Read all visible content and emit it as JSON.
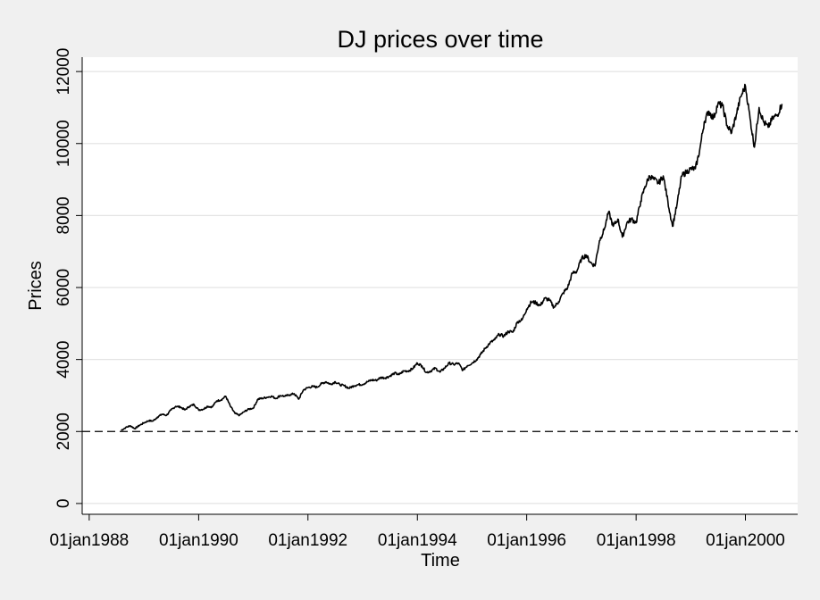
{
  "chart_data": {
    "type": "line",
    "title": "DJ prices over time",
    "xlabel": "Time",
    "ylabel": "Prices",
    "xlim": [
      "1987-11-15",
      "2000-12-15"
    ],
    "ylim": [
      -300,
      12400
    ],
    "x_ticks": [
      "01jan1988",
      "01jan1990",
      "01jan1992",
      "01jan1994",
      "01jan1996",
      "01jan1998",
      "01jan2000"
    ],
    "y_ticks": [
      0,
      2000,
      4000,
      6000,
      8000,
      10000,
      12000
    ],
    "grid": true,
    "reference_line": {
      "y": 2000,
      "style": "dashed"
    },
    "series": [
      {
        "points": [
          [
            "1988-08-01",
            2030
          ],
          [
            "1988-09-01",
            2110
          ],
          [
            "1988-10-01",
            2160
          ],
          [
            "1988-11-01",
            2080
          ],
          [
            "1988-12-01",
            2170
          ],
          [
            "1989-01-01",
            2240
          ],
          [
            "1989-02-01",
            2300
          ],
          [
            "1989-03-01",
            2290
          ],
          [
            "1989-04-01",
            2400
          ],
          [
            "1989-05-01",
            2480
          ],
          [
            "1989-06-01",
            2450
          ],
          [
            "1989-07-01",
            2600
          ],
          [
            "1989-08-01",
            2700
          ],
          [
            "1989-09-01",
            2680
          ],
          [
            "1989-10-01",
            2600
          ],
          [
            "1989-11-01",
            2700
          ],
          [
            "1989-12-01",
            2750
          ],
          [
            "1990-01-01",
            2600
          ],
          [
            "1990-02-01",
            2620
          ],
          [
            "1990-03-01",
            2700
          ],
          [
            "1990-04-01",
            2680
          ],
          [
            "1990-05-01",
            2850
          ],
          [
            "1990-06-01",
            2880
          ],
          [
            "1990-07-01",
            2980
          ],
          [
            "1990-08-01",
            2700
          ],
          [
            "1990-09-01",
            2500
          ],
          [
            "1990-10-01",
            2450
          ],
          [
            "1990-11-01",
            2550
          ],
          [
            "1990-12-01",
            2620
          ],
          [
            "1991-01-01",
            2650
          ],
          [
            "1991-02-01",
            2900
          ],
          [
            "1991-03-01",
            2920
          ],
          [
            "1991-04-01",
            2950
          ],
          [
            "1991-05-01",
            2980
          ],
          [
            "1991-06-01",
            2920
          ],
          [
            "1991-07-01",
            3000
          ],
          [
            "1991-08-01",
            2980
          ],
          [
            "1991-09-01",
            3020
          ],
          [
            "1991-10-01",
            3050
          ],
          [
            "1991-11-01",
            2900
          ],
          [
            "1991-12-01",
            3150
          ],
          [
            "1992-01-01",
            3220
          ],
          [
            "1992-02-01",
            3250
          ],
          [
            "1992-03-01",
            3230
          ],
          [
            "1992-04-01",
            3330
          ],
          [
            "1992-05-01",
            3380
          ],
          [
            "1992-06-01",
            3310
          ],
          [
            "1992-07-01",
            3380
          ],
          [
            "1992-08-01",
            3300
          ],
          [
            "1992-09-01",
            3270
          ],
          [
            "1992-10-01",
            3200
          ],
          [
            "1992-11-01",
            3270
          ],
          [
            "1992-12-01",
            3300
          ],
          [
            "1993-01-01",
            3310
          ],
          [
            "1993-02-01",
            3380
          ],
          [
            "1993-03-01",
            3430
          ],
          [
            "1993-04-01",
            3420
          ],
          [
            "1993-05-01",
            3500
          ],
          [
            "1993-06-01",
            3490
          ],
          [
            "1993-07-01",
            3540
          ],
          [
            "1993-08-01",
            3620
          ],
          [
            "1993-09-01",
            3580
          ],
          [
            "1993-10-01",
            3680
          ],
          [
            "1993-11-01",
            3680
          ],
          [
            "1993-12-01",
            3750
          ],
          [
            "1994-01-01",
            3900
          ],
          [
            "1994-02-01",
            3820
          ],
          [
            "1994-03-01",
            3640
          ],
          [
            "1994-04-01",
            3680
          ],
          [
            "1994-05-01",
            3760
          ],
          [
            "1994-06-01",
            3650
          ],
          [
            "1994-07-01",
            3760
          ],
          [
            "1994-08-01",
            3900
          ],
          [
            "1994-09-01",
            3860
          ],
          [
            "1994-10-01",
            3900
          ],
          [
            "1994-11-01",
            3700
          ],
          [
            "1994-12-01",
            3830
          ],
          [
            "1995-01-01",
            3900
          ],
          [
            "1995-02-01",
            4000
          ],
          [
            "1995-03-01",
            4150
          ],
          [
            "1995-04-01",
            4320
          ],
          [
            "1995-05-01",
            4460
          ],
          [
            "1995-06-01",
            4550
          ],
          [
            "1995-07-01",
            4700
          ],
          [
            "1995-08-01",
            4650
          ],
          [
            "1995-09-01",
            4780
          ],
          [
            "1995-10-01",
            4760
          ],
          [
            "1995-11-01",
            5050
          ],
          [
            "1995-12-01",
            5100
          ],
          [
            "1996-01-01",
            5400
          ],
          [
            "1996-02-01",
            5600
          ],
          [
            "1996-03-01",
            5580
          ],
          [
            "1996-04-01",
            5500
          ],
          [
            "1996-05-01",
            5700
          ],
          [
            "1996-06-01",
            5650
          ],
          [
            "1996-07-01",
            5450
          ],
          [
            "1996-08-01",
            5600
          ],
          [
            "1996-09-01",
            5850
          ],
          [
            "1996-10-01",
            6000
          ],
          [
            "1996-11-01",
            6400
          ],
          [
            "1996-12-01",
            6450
          ],
          [
            "1997-01-01",
            6800
          ],
          [
            "1997-02-01",
            6900
          ],
          [
            "1997-03-01",
            6700
          ],
          [
            "1997-04-01",
            6600
          ],
          [
            "1997-05-01",
            7300
          ],
          [
            "1997-06-01",
            7600
          ],
          [
            "1997-07-01",
            8100
          ],
          [
            "1997-08-01",
            7700
          ],
          [
            "1997-09-01",
            7900
          ],
          [
            "1997-10-01",
            7400
          ],
          [
            "1997-11-01",
            7800
          ],
          [
            "1997-12-01",
            7900
          ],
          [
            "1998-01-01",
            7800
          ],
          [
            "1998-02-01",
            8400
          ],
          [
            "1998-03-01",
            8800
          ],
          [
            "1998-04-01",
            9100
          ],
          [
            "1998-05-01",
            9000
          ],
          [
            "1998-06-01",
            8900
          ],
          [
            "1998-07-01",
            9100
          ],
          [
            "1998-08-01",
            8400
          ],
          [
            "1998-09-01",
            7700
          ],
          [
            "1998-10-01",
            8300
          ],
          [
            "1998-11-01",
            9100
          ],
          [
            "1998-12-01",
            9200
          ],
          [
            "1999-01-01",
            9300
          ],
          [
            "1999-02-01",
            9300
          ],
          [
            "1999-03-01",
            9800
          ],
          [
            "1999-04-01",
            10600
          ],
          [
            "1999-05-01",
            10900
          ],
          [
            "1999-06-01",
            10700
          ],
          [
            "1999-07-01",
            11100
          ],
          [
            "1999-08-01",
            11050
          ],
          [
            "1999-09-01",
            10500
          ],
          [
            "1999-10-01",
            10300
          ],
          [
            "1999-11-01",
            10800
          ],
          [
            "1999-12-01",
            11300
          ],
          [
            "2000-01-01",
            11600
          ],
          [
            "2000-02-01",
            10700
          ],
          [
            "2000-03-01",
            9900
          ],
          [
            "2000-04-01",
            11000
          ],
          [
            "2000-05-01",
            10600
          ],
          [
            "2000-06-01",
            10450
          ],
          [
            "2000-07-01",
            10700
          ],
          [
            "2000-08-01",
            10800
          ],
          [
            "2000-09-01",
            11100
          ]
        ]
      }
    ]
  }
}
